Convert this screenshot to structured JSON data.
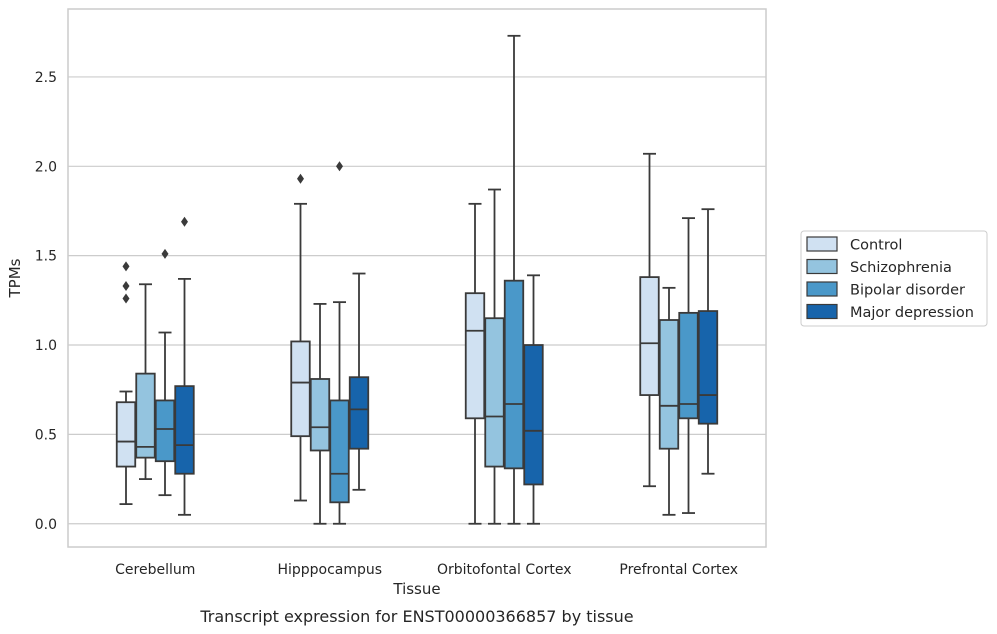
{
  "caption": "Transcript expression for ENST00000366857 by tissue",
  "chart_data": {
    "type": "box",
    "title": "",
    "xlabel": "Tissue",
    "ylabel": "TPMs",
    "ylim": [
      -0.13,
      2.88
    ],
    "yticks": [
      0.0,
      0.5,
      1.0,
      1.5,
      2.0,
      2.5
    ],
    "ytick_labels": [
      "0.0",
      "0.5",
      "1.0",
      "1.5",
      "2.0",
      "2.5"
    ],
    "grid": "horizontal",
    "legend_position": "right",
    "categories": [
      "Cerebellum",
      "Hipppocampus",
      "Orbitofontal Cortex",
      "Prefrontal Cortex"
    ],
    "series": [
      {
        "name": "Control",
        "color": "#d0e1f2",
        "boxes": [
          {
            "whislo": 0.11,
            "q1": 0.32,
            "med": 0.46,
            "q3": 0.68,
            "whishi": 0.74,
            "fliers": [
              1.26,
              1.33,
              1.44
            ]
          },
          {
            "whislo": 0.13,
            "q1": 0.49,
            "med": 0.79,
            "q3": 1.02,
            "whishi": 1.79,
            "fliers": [
              1.93
            ]
          },
          {
            "whislo": 0.0,
            "q1": 0.59,
            "med": 1.08,
            "q3": 1.29,
            "whishi": 1.79,
            "fliers": []
          },
          {
            "whislo": 0.21,
            "q1": 0.72,
            "med": 1.01,
            "q3": 1.38,
            "whishi": 2.07,
            "fliers": []
          }
        ]
      },
      {
        "name": "Schizophrenia",
        "color": "#94c4df",
        "boxes": [
          {
            "whislo": 0.25,
            "q1": 0.37,
            "med": 0.43,
            "q3": 0.84,
            "whishi": 1.34,
            "fliers": []
          },
          {
            "whislo": 0.0,
            "q1": 0.41,
            "med": 0.54,
            "q3": 0.81,
            "whishi": 1.23,
            "fliers": []
          },
          {
            "whislo": 0.0,
            "q1": 0.32,
            "med": 0.6,
            "q3": 1.15,
            "whishi": 1.87,
            "fliers": []
          },
          {
            "whislo": 0.05,
            "q1": 0.42,
            "med": 0.66,
            "q3": 1.14,
            "whishi": 1.32,
            "fliers": []
          }
        ]
      },
      {
        "name": "Bipolar disorder",
        "color": "#4a98c9",
        "boxes": [
          {
            "whislo": 0.16,
            "q1": 0.35,
            "med": 0.53,
            "q3": 0.69,
            "whishi": 1.07,
            "fliers": [
              1.51
            ]
          },
          {
            "whislo": 0.0,
            "q1": 0.12,
            "med": 0.28,
            "q3": 0.69,
            "whishi": 1.24,
            "fliers": [
              2.0
            ]
          },
          {
            "whislo": 0.0,
            "q1": 0.31,
            "med": 0.67,
            "q3": 1.36,
            "whishi": 2.73,
            "fliers": []
          },
          {
            "whislo": 0.06,
            "q1": 0.59,
            "med": 0.67,
            "q3": 1.18,
            "whishi": 1.71,
            "fliers": []
          }
        ]
      },
      {
        "name": "Major depression",
        "color": "#1764ab",
        "boxes": [
          {
            "whislo": 0.05,
            "q1": 0.28,
            "med": 0.44,
            "q3": 0.77,
            "whishi": 1.37,
            "fliers": [
              1.69
            ]
          },
          {
            "whislo": 0.19,
            "q1": 0.42,
            "med": 0.64,
            "q3": 0.82,
            "whishi": 1.4,
            "fliers": []
          },
          {
            "whislo": 0.0,
            "q1": 0.22,
            "med": 0.52,
            "q3": 1.0,
            "whishi": 1.39,
            "fliers": []
          },
          {
            "whislo": 0.28,
            "q1": 0.56,
            "med": 0.72,
            "q3": 1.19,
            "whishi": 1.76,
            "fliers": []
          }
        ]
      }
    ]
  }
}
